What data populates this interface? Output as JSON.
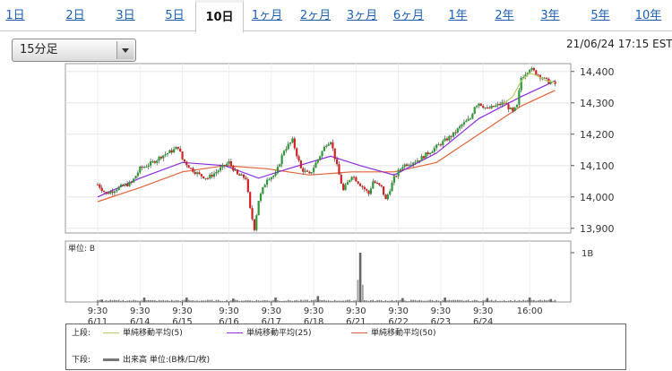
{
  "tabs": [
    {
      "label": "1日",
      "active": false
    },
    {
      "label": "2日",
      "active": false
    },
    {
      "label": "3日",
      "active": false
    },
    {
      "label": "5日",
      "active": false
    },
    {
      "label": "10日",
      "active": true
    },
    {
      "label": "1ヶ月",
      "active": false
    },
    {
      "label": "2ヶ月",
      "active": false
    },
    {
      "label": "3ヶ月",
      "active": false
    },
    {
      "label": "6ヶ月",
      "active": false
    },
    {
      "label": "1年",
      "active": false
    },
    {
      "label": "2年",
      "active": false
    },
    {
      "label": "3年",
      "active": false
    },
    {
      "label": "5年",
      "active": false
    },
    {
      "label": "10年",
      "active": false
    }
  ],
  "interval_select": {
    "value": "15分足"
  },
  "timestamp": "21/06/24 17:15 EST",
  "legend": {
    "upper_label": "上段:",
    "lower_label": "下段:",
    "sma5": "単純移動平均(5)",
    "sma25": "単純移動平均(25)",
    "sma50": "単純移動平均(50)",
    "volume": "出来高 単位:(B株/口/枚)"
  },
  "colors": {
    "sma5": "#b7cf6a",
    "sma25": "#8a2be2",
    "sma50": "#e3633a",
    "up": "#2c9a36",
    "down": "#d32020",
    "volume": "#777777"
  },
  "chart_data": {
    "type": "candlestick",
    "price_axis": {
      "ticks": [
        "14,400",
        "14,300",
        "14,200",
        "14,100",
        "14,000",
        "13,900"
      ],
      "ylim": [
        13885,
        14425
      ]
    },
    "volume_axis": {
      "unit_label": "単位: B",
      "ticks": [
        "1B"
      ]
    },
    "x_labels": [
      {
        "time": "9:30",
        "date": "6/11"
      },
      {
        "time": "9:30",
        "date": "6/14"
      },
      {
        "time": "9:30",
        "date": "6/15"
      },
      {
        "time": "9:30",
        "date": "6/16"
      },
      {
        "time": "9:30",
        "date": "6/17"
      },
      {
        "time": "9:30",
        "date": "6/18"
      },
      {
        "time": "9:30",
        "date": "6/21"
      },
      {
        "time": "9:30",
        "date": "6/22"
      },
      {
        "time": "9:30",
        "date": "6/23"
      },
      {
        "time": "9:30",
        "date": "6/24"
      },
      {
        "time": "16:00",
        "date": ""
      }
    ],
    "price_path": [
      [
        0,
        14040
      ],
      [
        2,
        14010
      ],
      [
        5,
        14030
      ],
      [
        8,
        14045
      ],
      [
        10,
        14090
      ],
      [
        13,
        14110
      ],
      [
        15,
        14130
      ],
      [
        18,
        14150
      ],
      [
        19,
        14160
      ],
      [
        20,
        14120
      ],
      [
        22,
        14090
      ],
      [
        24,
        14070
      ],
      [
        26,
        14060
      ],
      [
        28,
        14080
      ],
      [
        30,
        14100
      ],
      [
        31,
        14110
      ],
      [
        33,
        14070
      ],
      [
        35,
        14060
      ],
      [
        36,
        13960
      ],
      [
        37,
        13900
      ],
      [
        38,
        13990
      ],
      [
        40,
        14060
      ],
      [
        42,
        14070
      ],
      [
        44,
        14150
      ],
      [
        46,
        14180
      ],
      [
        48,
        14090
      ],
      [
        50,
        14070
      ],
      [
        52,
        14120
      ],
      [
        54,
        14170
      ],
      [
        55,
        14180
      ],
      [
        57,
        14070
      ],
      [
        58,
        14020
      ],
      [
        60,
        14070
      ],
      [
        62,
        14040
      ],
      [
        64,
        14010
      ],
      [
        65,
        14050
      ],
      [
        67,
        14030
      ],
      [
        68,
        13990
      ],
      [
        70,
        14060
      ],
      [
        72,
        14100
      ],
      [
        74,
        14110
      ],
      [
        76,
        14120
      ],
      [
        78,
        14140
      ],
      [
        80,
        14160
      ],
      [
        82,
        14180
      ],
      [
        84,
        14200
      ],
      [
        86,
        14230
      ],
      [
        88,
        14250
      ],
      [
        89,
        14290
      ],
      [
        90,
        14300
      ],
      [
        92,
        14280
      ],
      [
        94,
        14290
      ],
      [
        96,
        14300
      ],
      [
        98,
        14270
      ],
      [
        99,
        14290
      ],
      [
        100,
        14380
      ],
      [
        102,
        14410
      ],
      [
        104,
        14390
      ],
      [
        106,
        14370
      ],
      [
        108,
        14360
      ]
    ],
    "sma50_path": [
      [
        0,
        13985
      ],
      [
        10,
        14030
      ],
      [
        20,
        14080
      ],
      [
        30,
        14100
      ],
      [
        40,
        14090
      ],
      [
        50,
        14070
      ],
      [
        60,
        14080
      ],
      [
        70,
        14080
      ],
      [
        80,
        14110
      ],
      [
        90,
        14200
      ],
      [
        100,
        14290
      ],
      [
        108,
        14340
      ]
    ],
    "sma25_path": [
      [
        0,
        14000
      ],
      [
        10,
        14060
      ],
      [
        20,
        14110
      ],
      [
        30,
        14100
      ],
      [
        38,
        14060
      ],
      [
        45,
        14090
      ],
      [
        55,
        14130
      ],
      [
        62,
        14100
      ],
      [
        70,
        14070
      ],
      [
        80,
        14140
      ],
      [
        90,
        14250
      ],
      [
        100,
        14320
      ],
      [
        108,
        14370
      ]
    ],
    "volume_spikes": [
      {
        "x": 1,
        "v": 0.05
      },
      {
        "x": 11,
        "v": 0.09
      },
      {
        "x": 21,
        "v": 0.09
      },
      {
        "x": 32,
        "v": 0.07
      },
      {
        "x": 42,
        "v": 0.09
      },
      {
        "x": 52,
        "v": 0.12
      },
      {
        "x": 62,
        "v": 1.0
      },
      {
        "x": 72,
        "v": 0.08
      },
      {
        "x": 82,
        "v": 0.09
      },
      {
        "x": 92,
        "v": 0.08
      },
      {
        "x": 102,
        "v": 0.09
      },
      {
        "x": 107,
        "v": 0.06
      }
    ]
  }
}
